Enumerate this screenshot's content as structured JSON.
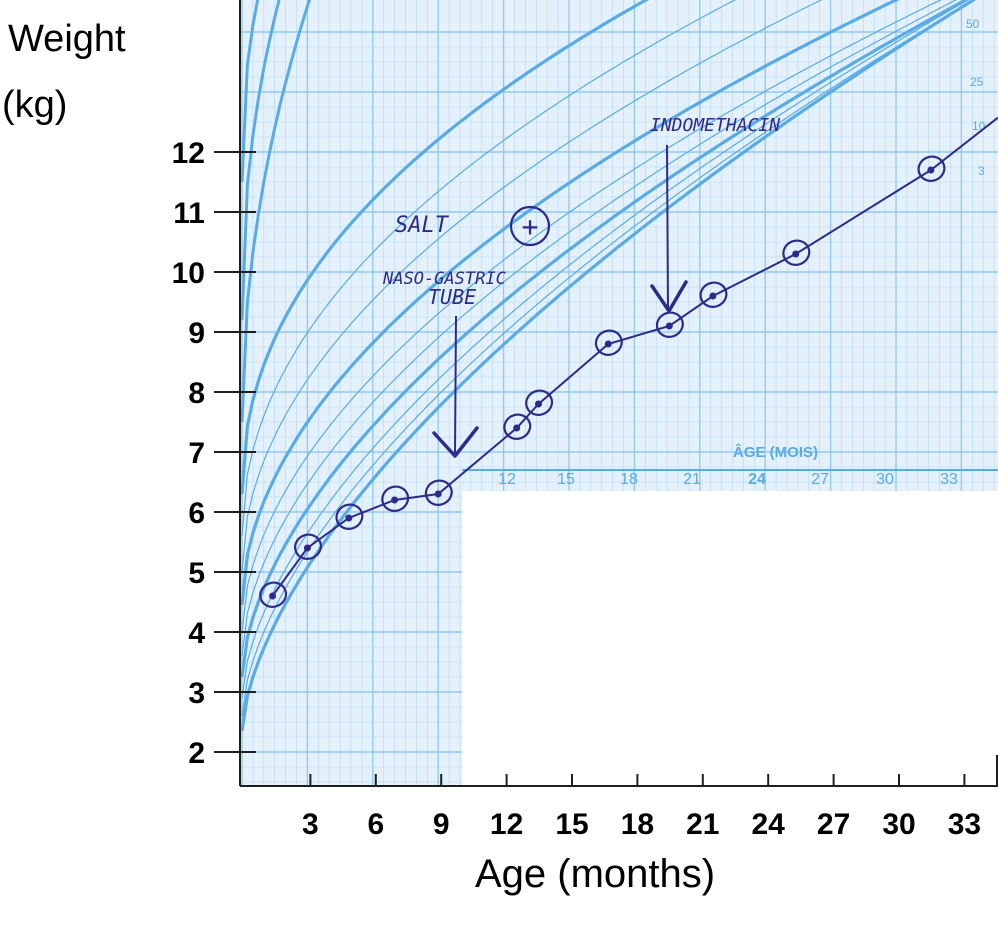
{
  "chart_data": {
    "type": "line",
    "ylabel": [
      "Weight",
      "(kg)"
    ],
    "xlabel": "Age (months)",
    "x_ticks": [
      3,
      6,
      9,
      12,
      15,
      18,
      21,
      24,
      27,
      30,
      33
    ],
    "y_ticks": [
      2,
      3,
      4,
      5,
      6,
      7,
      8,
      9,
      10,
      11,
      12
    ],
    "xlim": [
      0,
      35
    ],
    "ylim": [
      1.7,
      13.6
    ],
    "grid": true,
    "inner_axis_title": "ÂGE (MOIS)",
    "inner_x_ticks": [
      "12",
      "15",
      "18",
      "21",
      "24",
      "27",
      "30",
      "33"
    ],
    "percentile_labels": [
      "50",
      "25",
      "10",
      "3"
    ],
    "series": [
      {
        "values": [
          {
            "x": 1.4,
            "y": 4.6
          },
          {
            "x": 3.0,
            "y": 5.4
          },
          {
            "x": 4.9,
            "y": 5.9
          },
          {
            "x": 7.0,
            "y": 6.2
          },
          {
            "x": 9.0,
            "y": 6.3
          },
          {
            "x": 12.6,
            "y": 7.4
          },
          {
            "x": 13.6,
            "y": 7.8
          },
          {
            "x": 16.8,
            "y": 8.8
          },
          {
            "x": 19.6,
            "y": 9.1
          },
          {
            "x": 21.6,
            "y": 9.6
          },
          {
            "x": 25.4,
            "y": 10.3
          },
          {
            "x": 31.6,
            "y": 11.7
          }
        ],
        "color": "#2d2a8c"
      }
    ],
    "annotations": [
      {
        "text": "SALT",
        "x": 8.3,
        "y": 10.9
      },
      {
        "text": "+",
        "x": 13.8,
        "y": 10.8
      },
      {
        "text": "NASO-GASTRIC",
        "x": 7.5,
        "y": 9.95
      },
      {
        "text": "TUBE",
        "x": 9.5,
        "y": 9.5
      },
      {
        "text": "INDOMETHACIN",
        "x": 19.5,
        "y": 12.5
      }
    ],
    "colors": {
      "grid_background": "#e4f1fb",
      "grid_line": "#8cc6ee",
      "percentile_curve": "#59abe6",
      "data_line": "#2d2a8c",
      "axis": "#1e1e1e"
    }
  }
}
